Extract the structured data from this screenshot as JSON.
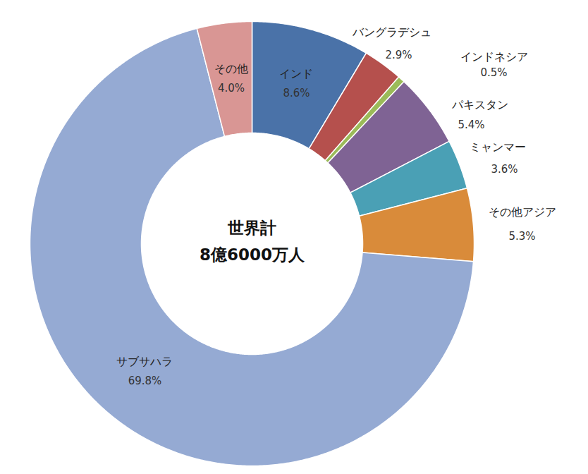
{
  "chart_data": {
    "type": "donut",
    "categories": [
      "インド",
      "バングラデシュ",
      "インドネシア",
      "パキスタン",
      "ミャンマー",
      "その他アジア",
      "サブサハラ",
      "その他"
    ],
    "values": [
      8.6,
      2.9,
      0.5,
      5.4,
      3.6,
      5.3,
      69.8,
      4.0
    ],
    "value_labels": [
      "8.6%",
      "2.9%",
      "0.5%",
      "5.4%",
      "3.6%",
      "5.3%",
      "69.8%",
      "4.0%"
    ],
    "colors": [
      "#4a72a8",
      "#b5504d",
      "#9bbb59",
      "#7f6394",
      "#4aa0b5",
      "#d98b3a",
      "#95aad3",
      "#d99694"
    ],
    "data_labels": true,
    "annotations": [
      "世界計",
      "8億6000万人"
    ]
  }
}
